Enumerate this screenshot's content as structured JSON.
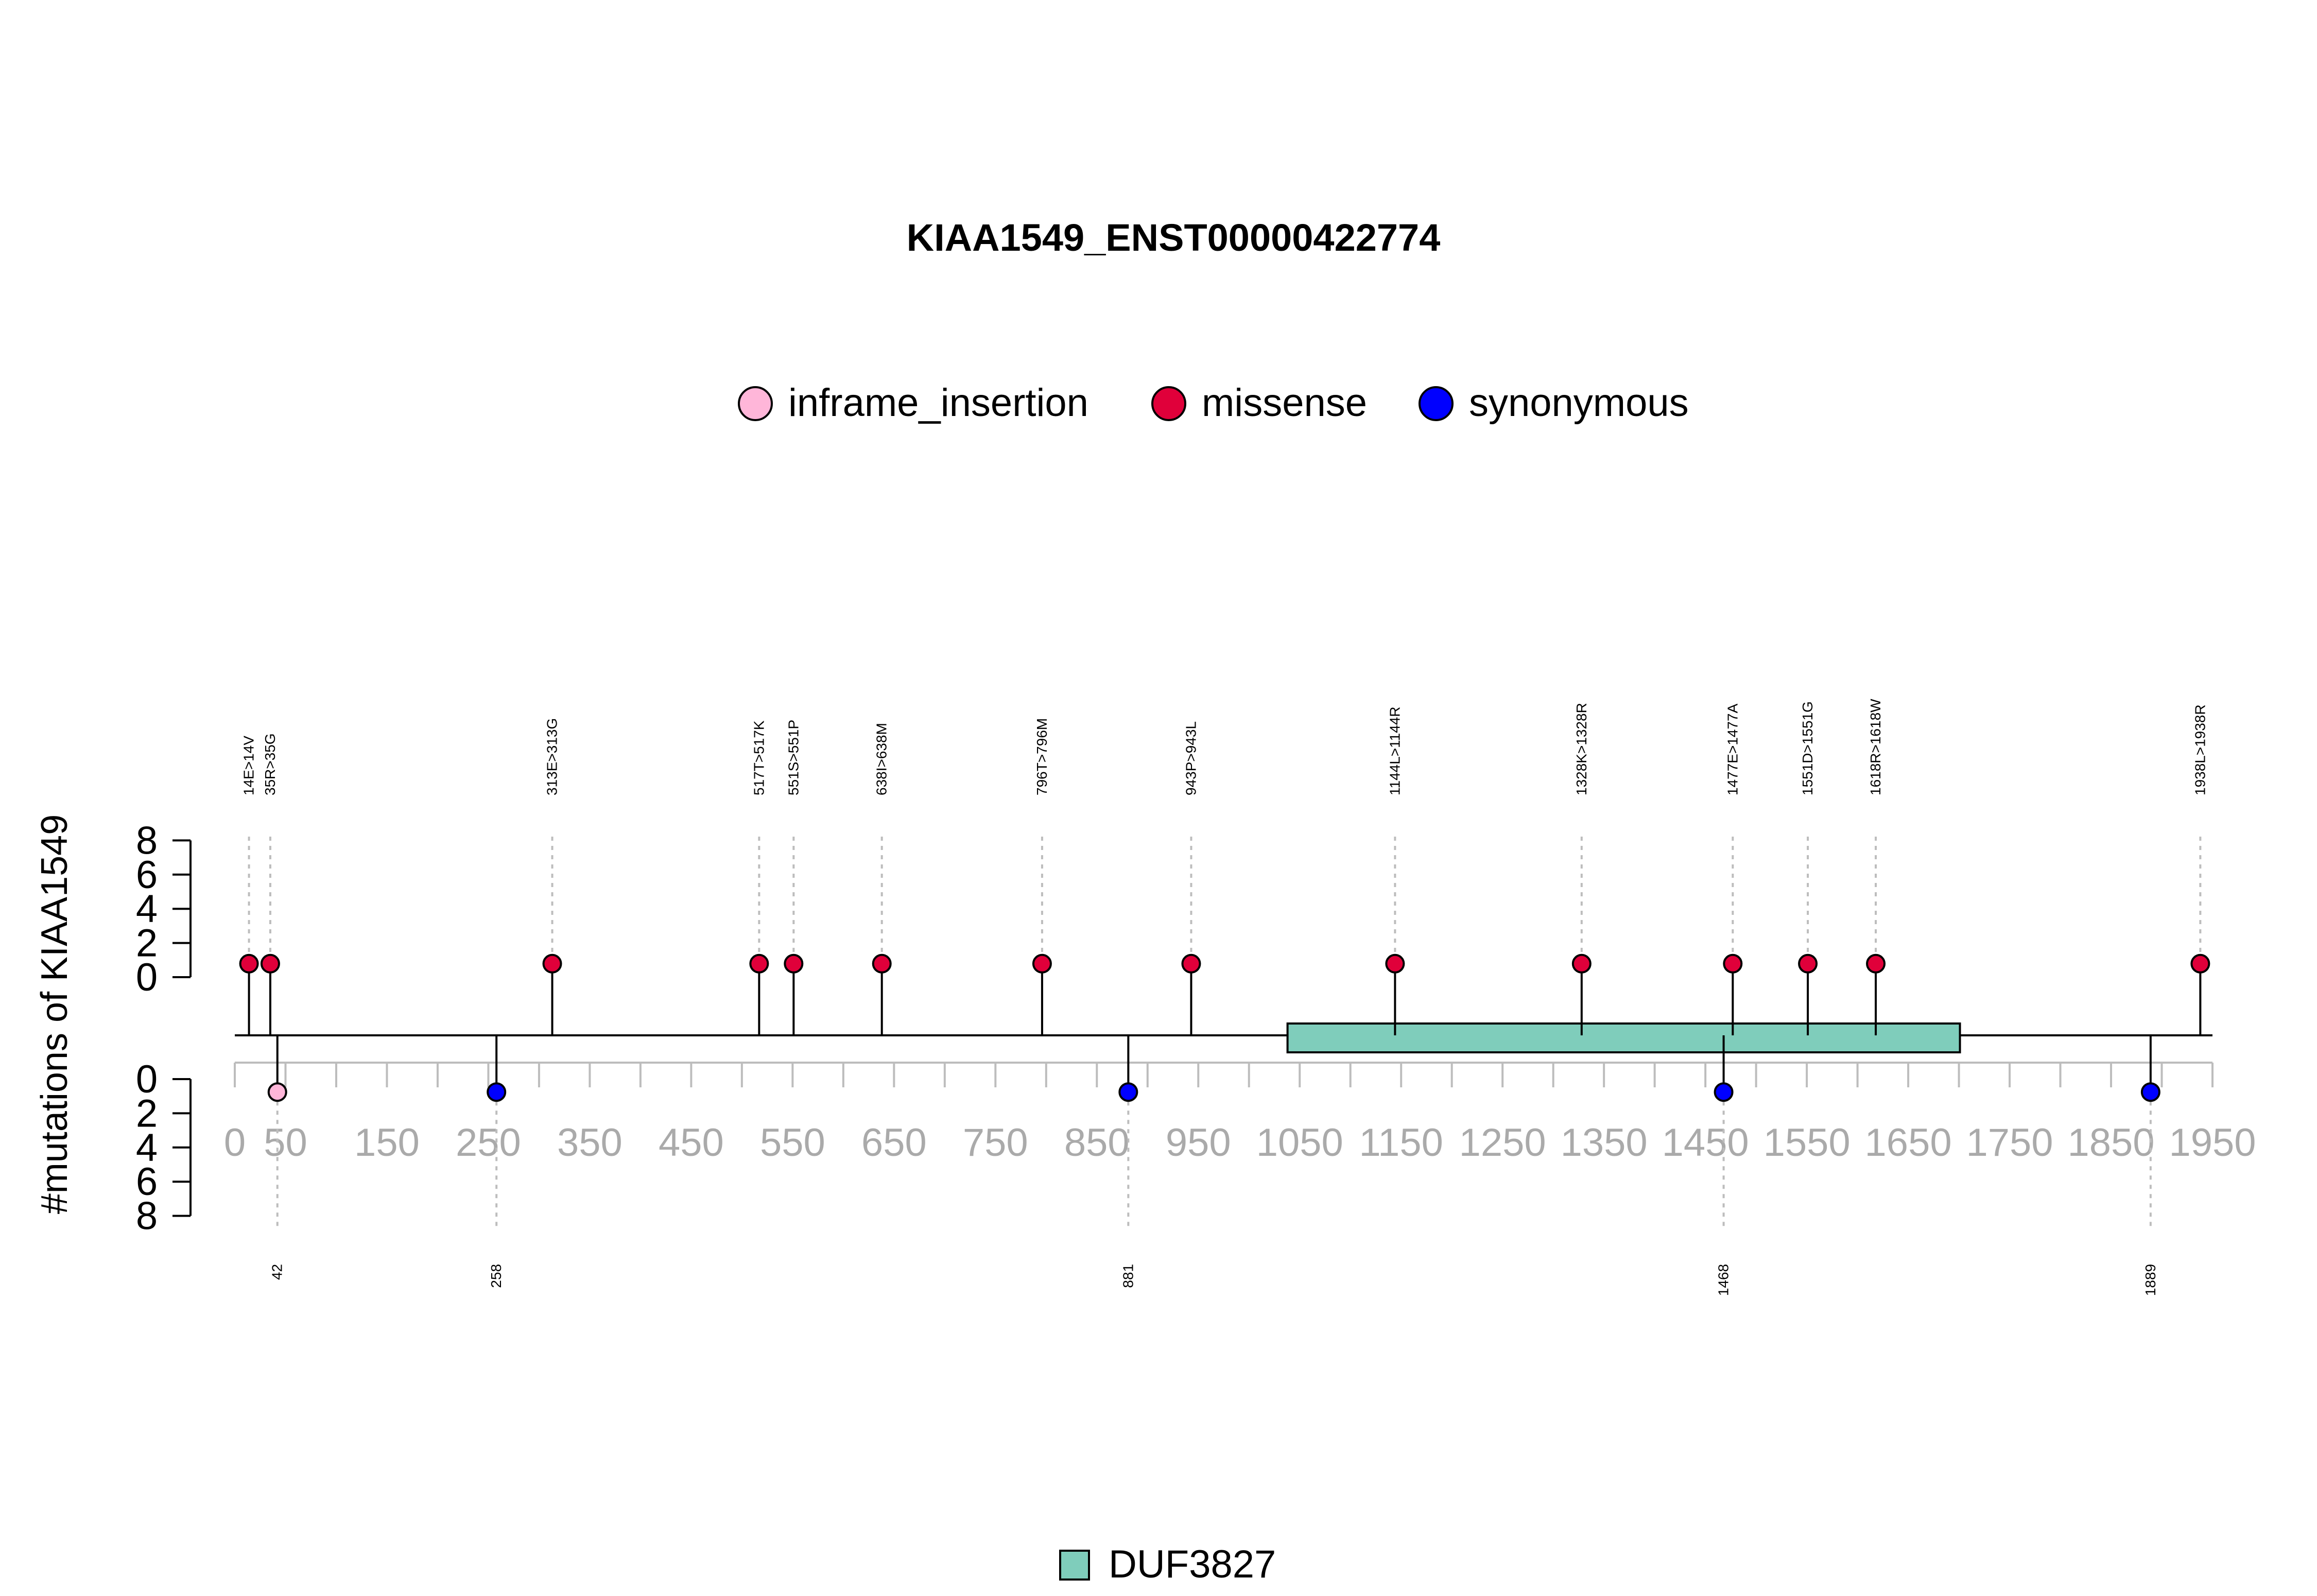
{
  "chart_data": {
    "type": "lollipop",
    "title": "KIAA1549_ENST00000422774",
    "ylabel": "#mutations of KIAA1549",
    "xlim": [
      0,
      1950
    ],
    "x_ticks": [
      0,
      50,
      150,
      250,
      350,
      450,
      550,
      650,
      750,
      850,
      950,
      1050,
      1150,
      1250,
      1350,
      1450,
      1550,
      1650,
      1750,
      1850,
      1950
    ],
    "y_ticks_top": [
      0,
      2,
      4,
      6,
      8
    ],
    "y_ticks_bottom": [
      0,
      2,
      4,
      6,
      8
    ],
    "legend": [
      {
        "name": "inframe_insertion",
        "color": "#ffb6d9"
      },
      {
        "name": "missense",
        "color": "#e0003a"
      },
      {
        "name": "synonymous",
        "color": "#0000ff"
      }
    ],
    "domains": [
      {
        "name": "DUF3827",
        "start": 1038,
        "end": 1701,
        "color": "#7fcdbb"
      }
    ],
    "mutations_top": [
      {
        "label": "14E>14V",
        "position": 14,
        "count": 1,
        "type": "missense"
      },
      {
        "label": "35R>35G",
        "position": 35,
        "count": 1,
        "type": "missense"
      },
      {
        "label": "313E>313G",
        "position": 313,
        "count": 1,
        "type": "missense"
      },
      {
        "label": "517T>517K",
        "position": 517,
        "count": 1,
        "type": "missense"
      },
      {
        "label": "551S>551P",
        "position": 551,
        "count": 1,
        "type": "missense"
      },
      {
        "label": "638I>638M",
        "position": 638,
        "count": 1,
        "type": "missense"
      },
      {
        "label": "796T>796M",
        "position": 796,
        "count": 1,
        "type": "missense"
      },
      {
        "label": "943P>943L",
        "position": 943,
        "count": 1,
        "type": "missense"
      },
      {
        "label": "1144L>1144R",
        "position": 1144,
        "count": 1,
        "type": "missense"
      },
      {
        "label": "1328K>1328R",
        "position": 1328,
        "count": 1,
        "type": "missense"
      },
      {
        "label": "1477E>1477A",
        "position": 1477,
        "count": 1,
        "type": "missense"
      },
      {
        "label": "1551D>1551G",
        "position": 1551,
        "count": 1,
        "type": "missense"
      },
      {
        "label": "1618R>1618W",
        "position": 1618,
        "count": 1,
        "type": "missense"
      },
      {
        "label": "1938L>1938R",
        "position": 1938,
        "count": 1,
        "type": "missense"
      }
    ],
    "mutations_bottom": [
      {
        "label": "42",
        "position": 42,
        "count": 1,
        "type": "inframe_insertion"
      },
      {
        "label": "258",
        "position": 258,
        "count": 1,
        "type": "synonymous"
      },
      {
        "label": "881",
        "position": 881,
        "count": 1,
        "type": "synonymous"
      },
      {
        "label": "1468",
        "position": 1468,
        "count": 1,
        "type": "synonymous"
      },
      {
        "label": "1889",
        "position": 1889,
        "count": 1,
        "type": "synonymous"
      }
    ]
  }
}
